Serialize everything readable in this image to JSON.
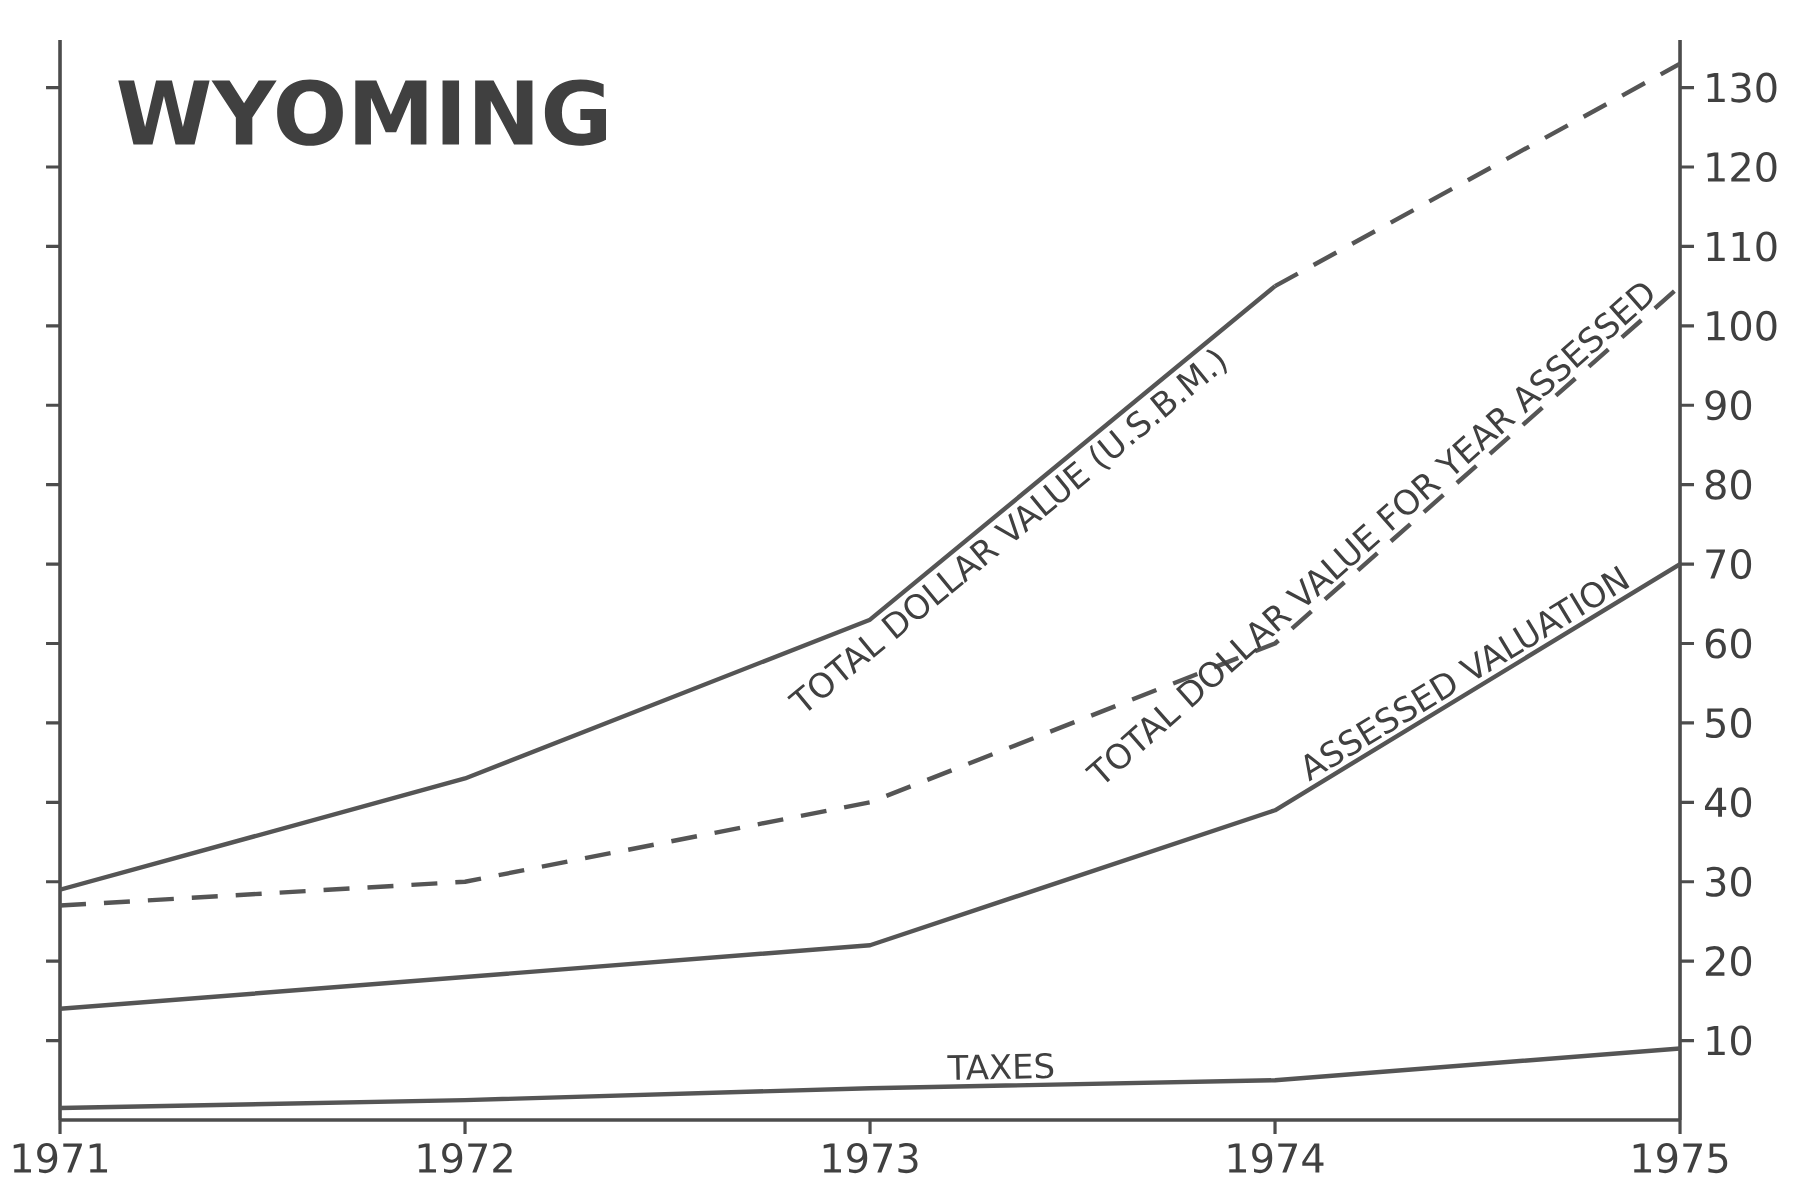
{
  "chart_data": {
    "type": "line",
    "title": "WYOMING",
    "x": [
      1971,
      1972,
      1973,
      1974,
      1975
    ],
    "xlim": [
      1971,
      1975
    ],
    "xticks": [
      1971,
      1972,
      1973,
      1974,
      1975
    ],
    "ylim": [
      0,
      136
    ],
    "yticks": [
      10,
      20,
      30,
      40,
      50,
      60,
      70,
      80,
      90,
      100,
      110,
      120,
      130
    ],
    "marker": "none",
    "series": [
      {
        "name": "TOTAL DOLLAR VALUE (U.S.B.M.)",
        "color": "#555555",
        "line_style": "solid",
        "x": [
          1971,
          1972,
          1973,
          1974
        ],
        "values": [
          29,
          43,
          63,
          105
        ]
      },
      {
        "color": "#555555",
        "line_style": "dashed",
        "x": [
          1974,
          1975
        ],
        "values": [
          105,
          133
        ]
      },
      {
        "name": "TOTAL DOLLAR VALUE FOR YEAR ASSESSED",
        "color": "#555555",
        "line_style": "dashed",
        "values": [
          27,
          30,
          40,
          60,
          105
        ]
      },
      {
        "name": "ASSESSED VALUATION",
        "color": "#555555",
        "line_style": "solid",
        "values": [
          14,
          18,
          22,
          39,
          70
        ]
      },
      {
        "name": "TAXES",
        "color": "#555555",
        "line_style": "solid",
        "values": [
          1.5,
          2.5,
          4,
          5,
          9
        ]
      }
    ]
  }
}
